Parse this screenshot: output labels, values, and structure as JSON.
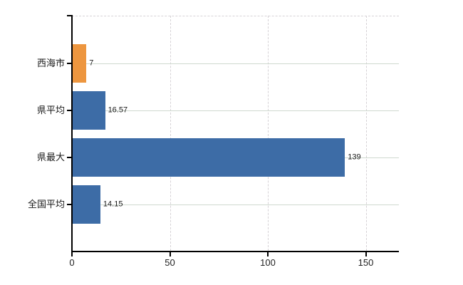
{
  "chart_data": {
    "type": "bar",
    "orientation": "horizontal",
    "title": "",
    "xlabel": "",
    "ylabel": "",
    "categories": [
      "西海市",
      "県平均",
      "県最大",
      "全国平均"
    ],
    "values": [
      7,
      16.57,
      139,
      14.15
    ],
    "value_labels": [
      "7",
      "16.57",
      "139",
      "14.15"
    ],
    "bar_colors": [
      "#ED963F",
      "#3D6CA6",
      "#3D6CA6",
      "#3D6CA6"
    ],
    "x_ticks": [
      0,
      50,
      100,
      150
    ],
    "x_tick_labels": [
      "0",
      "50",
      "100",
      "150"
    ],
    "xlim": [
      0,
      167
    ],
    "legend": "none",
    "grid": {
      "vertical": "dashed light gray at each x tick",
      "horizontal": "solid light gray at each category center",
      "plot_top_border": "dashed light gray"
    }
  },
  "colors": {
    "background": "#ffffff",
    "axis": "#000000",
    "gridline_horizontal": "#cfd9cf",
    "gridline_vertical": "#d6d2d6",
    "text": "#1a1a1a",
    "highlight_bar": "#ED963F",
    "default_bar": "#3D6CA6"
  }
}
